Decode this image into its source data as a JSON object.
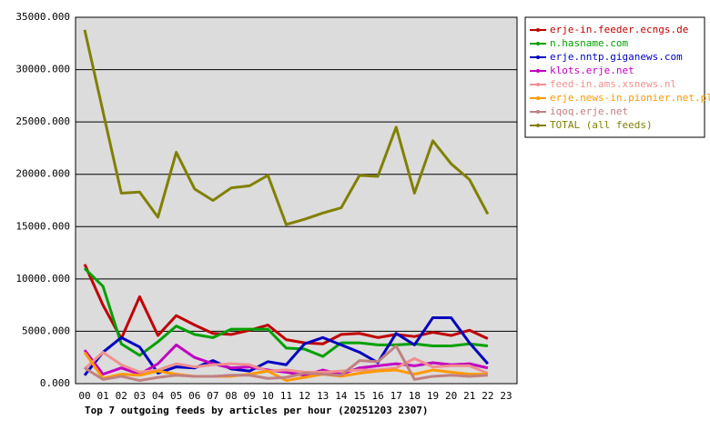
{
  "chart_data": {
    "type": "line",
    "title": "Top 7 outgoing feeds by articles per hour (20251203 2307)",
    "categories": [
      "00",
      "01",
      "02",
      "03",
      "04",
      "05",
      "06",
      "07",
      "08",
      "09",
      "10",
      "11",
      "12",
      "13",
      "14",
      "15",
      "16",
      "17",
      "18",
      "19",
      "20",
      "21",
      "22",
      "23"
    ],
    "ylim": [
      0,
      35000
    ],
    "yticks": [
      {
        "value": 0,
        "label": "0.000"
      },
      {
        "value": 5000,
        "label": "5000.000"
      },
      {
        "value": 10000,
        "label": "10000.000"
      },
      {
        "value": 15000,
        "label": "15000.000"
      },
      {
        "value": 20000,
        "label": "20000.000"
      },
      {
        "value": 25000,
        "label": "25000.000"
      },
      {
        "value": 30000,
        "label": "30000.000"
      },
      {
        "value": 35000,
        "label": "35000.000"
      }
    ],
    "grid": true,
    "legend": "right",
    "series": [
      {
        "name": "erje-in.feeder.ecngs.de",
        "color": "#c00000",
        "values": [
          11400,
          7500,
          4300,
          8300,
          4600,
          6500,
          5600,
          4800,
          4700,
          5100,
          5600,
          4200,
          3900,
          3800,
          4700,
          4800,
          4400,
          4700,
          4500,
          4900,
          4600,
          5100,
          4300,
          null
        ]
      },
      {
        "name": "n.hasname.com",
        "color": "#00a000",
        "values": [
          11000,
          9300,
          3800,
          2700,
          4000,
          5500,
          4700,
          4400,
          5200,
          5200,
          5200,
          3400,
          3300,
          2600,
          3900,
          3900,
          3700,
          3700,
          3800,
          3600,
          3600,
          3800,
          3600,
          null
        ]
      },
      {
        "name": "erje.nntp.giganews.com",
        "color": "#0000c0",
        "values": [
          800,
          3000,
          4400,
          3500,
          1000,
          1600,
          1500,
          2200,
          1400,
          1200,
          2100,
          1800,
          3800,
          4400,
          3700,
          3000,
          2000,
          4800,
          3700,
          6300,
          6300,
          3900,
          1900,
          null
        ]
      },
      {
        "name": "klots.erje.net",
        "color": "#c000c0",
        "values": [
          3200,
          900,
          1500,
          900,
          1900,
          3700,
          2500,
          1900,
          1500,
          1600,
          1300,
          1100,
          800,
          1300,
          900,
          1500,
          1700,
          1900,
          1700,
          2000,
          1800,
          1900,
          1500,
          null
        ]
      },
      {
        "name": "feed-in.ams.xsnews.nl",
        "color": "#f09090",
        "values": [
          1400,
          3000,
          1800,
          1100,
          1300,
          1900,
          1600,
          1800,
          1900,
          1800,
          1200,
          1300,
          1100,
          1100,
          1200,
          1300,
          1300,
          1500,
          2400,
          1600,
          1700,
          1700,
          1000,
          null
        ]
      },
      {
        "name": "erje.news-in.pionier.net.pl",
        "color": "#ff9900",
        "values": [
          3000,
          500,
          900,
          800,
          1200,
          900,
          700,
          700,
          700,
          900,
          1200,
          300,
          600,
          900,
          700,
          1000,
          1200,
          1300,
          900,
          1300,
          1100,
          900,
          900,
          null
        ]
      },
      {
        "name": "iqoq.erje.net",
        "color": "#c08080",
        "values": [
          1500,
          400,
          700,
          300,
          600,
          800,
          700,
          700,
          800,
          800,
          500,
          600,
          1000,
          900,
          800,
          2200,
          2100,
          3600,
          400,
          700,
          800,
          700,
          800,
          null
        ]
      },
      {
        "name": "TOTAL (all feeds)",
        "color": "#808000",
        "values": [
          33800,
          26000,
          18200,
          18300,
          15900,
          22100,
          18600,
          17500,
          18700,
          18900,
          19900,
          15200,
          15700,
          16300,
          16800,
          19900,
          19800,
          24500,
          18200,
          23200,
          21000,
          19500,
          16200,
          null
        ]
      }
    ]
  }
}
